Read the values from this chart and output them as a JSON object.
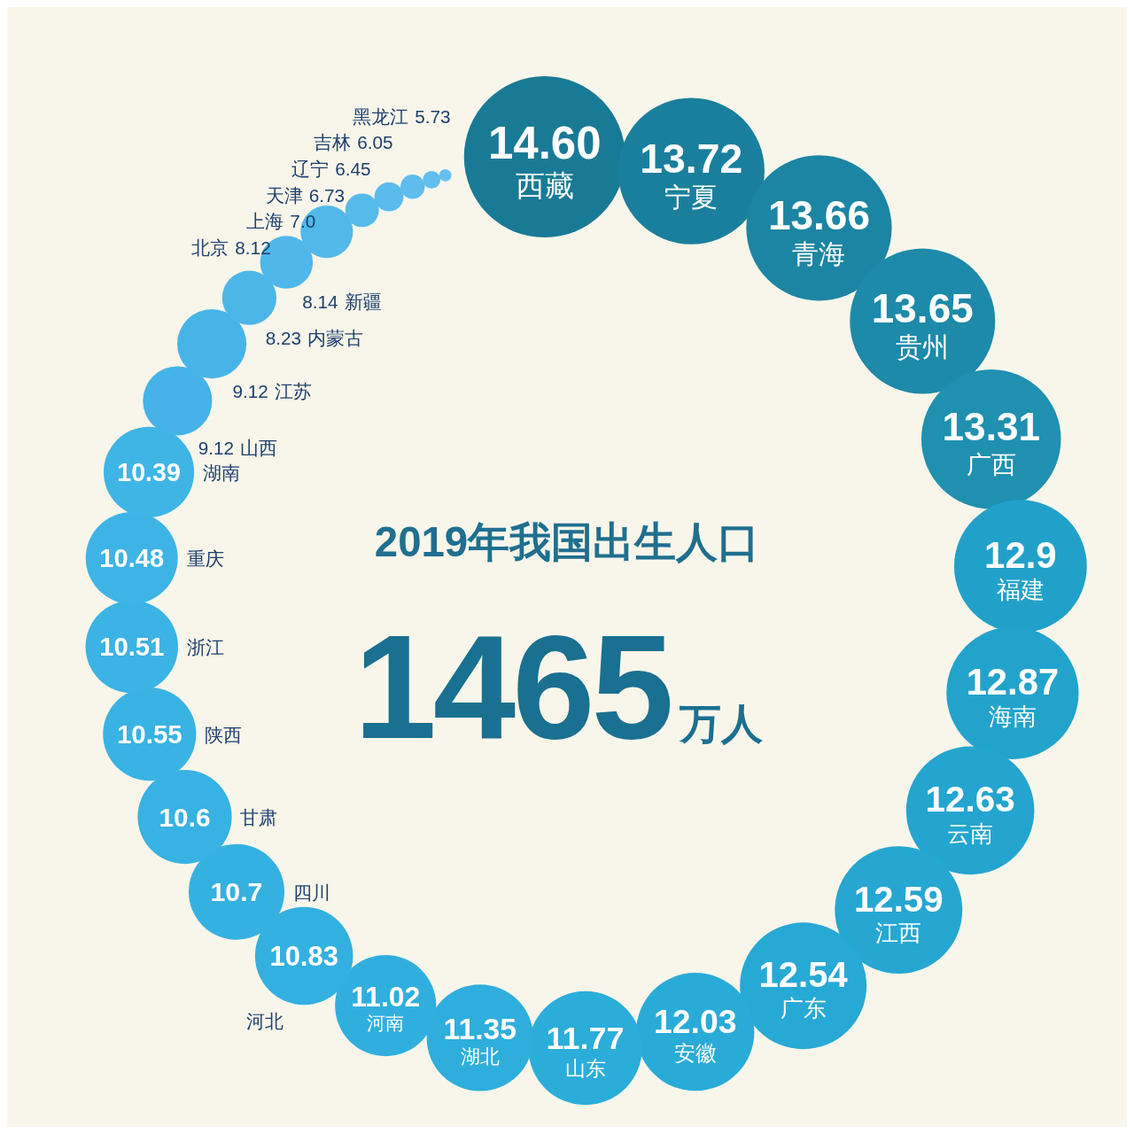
{
  "chart_data": {
    "type": "other",
    "title": "2019年我国出生人口",
    "annotations": [
      "1465万人"
    ],
    "categories": [
      "西藏",
      "宁夏",
      "青海",
      "贵州",
      "广西",
      "福建",
      "海南",
      "云南",
      "江西",
      "广东",
      "安徽",
      "山东",
      "湖北",
      "河南",
      "河北",
      "四川",
      "甘肃",
      "陕西",
      "浙江",
      "重庆",
      "湖南",
      "山西",
      "江苏",
      "内蒙古",
      "新疆",
      "北京",
      "上海",
      "天津",
      "辽宁",
      "吉林",
      "黑龙江"
    ],
    "values": [
      14.6,
      13.72,
      13.66,
      13.65,
      13.31,
      12.9,
      12.87,
      12.63,
      12.59,
      12.54,
      12.03,
      11.77,
      11.35,
      11.02,
      10.83,
      10.7,
      10.6,
      10.55,
      10.51,
      10.48,
      10.39,
      9.12,
      9.12,
      8.23,
      8.14,
      8.12,
      7.0,
      6.73,
      6.45,
      6.05,
      5.73
    ],
    "value_labels": [
      "14.60",
      "13.72",
      "13.66",
      "13.65",
      "13.31",
      "12.9",
      "12.87",
      "12.63",
      "12.59",
      "12.54",
      "12.03",
      "11.77",
      "11.35",
      "11.02",
      "10.83",
      "10.7",
      "10.6",
      "10.55",
      "10.51",
      "10.48",
      "10.39",
      "9.12",
      "9.12",
      "8.23",
      "8.14",
      "8.12",
      "7.0",
      "6.73",
      "6.45",
      "6.05",
      "5.73"
    ],
    "colors": [
      "#197a96",
      "#1a7f9c",
      "#1c85a3",
      "#1d8aa9",
      "#1f90b0",
      "#21a1c9",
      "#22a3cc",
      "#23a5cf",
      "#25a7d2",
      "#27a9d5",
      "#29abd8",
      "#2badda",
      "#2eaedc",
      "#30afde",
      "#33b0e0",
      "#35b1e1",
      "#37b2e2",
      "#39b3e3",
      "#3bb3e4",
      "#3db4e5",
      "#3fb5e6",
      "#45b3e8",
      "#47b4e8",
      "#4cb6e9",
      "#4fb7ea",
      "#52b8ea",
      "#56baeb",
      "#5abbec",
      "#5ebdec",
      "#62beed",
      "#66c0ee"
    ]
  }
}
